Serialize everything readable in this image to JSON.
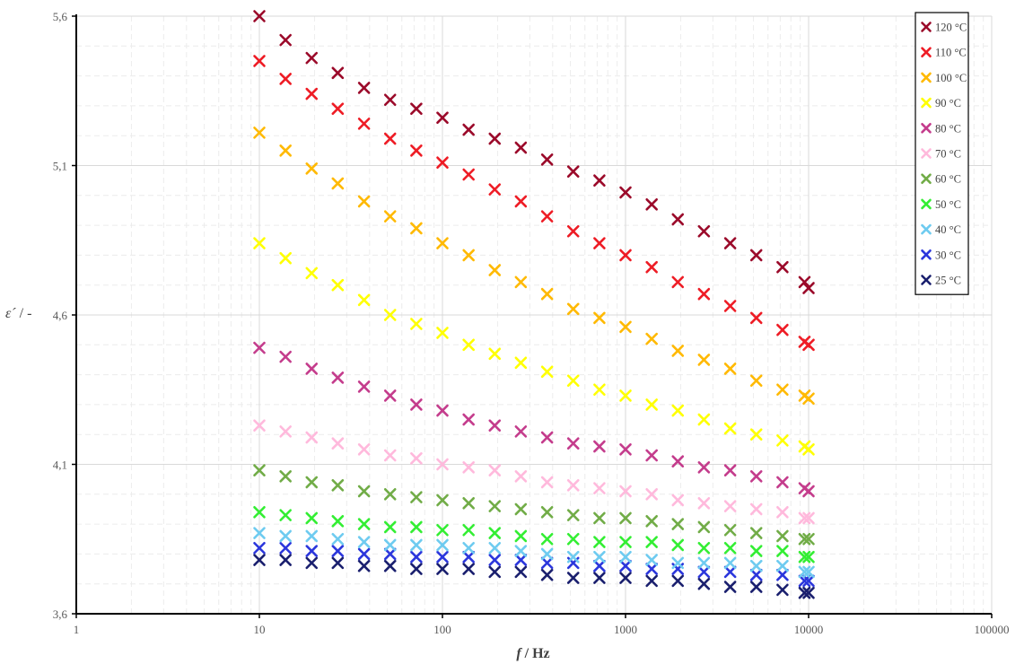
{
  "chart_data": {
    "type": "scatter",
    "xlabel": {
      "var": "f",
      "unit": "/ Hz"
    },
    "ylabel": {
      "var": "ε´",
      "unit": "/ -"
    },
    "x_scale": "log",
    "xlim": [
      1,
      100000
    ],
    "ylim": [
      3.6,
      5.6
    ],
    "grid": true,
    "legend_position": "top-right",
    "x_ticks": [
      "1",
      "10",
      "100",
      "1000",
      "10000",
      "100000"
    ],
    "y_ticks": [
      "3,6",
      "4,1",
      "4,6",
      "5,1",
      "5,6"
    ],
    "x": [
      10,
      13.9,
      19.3,
      26.8,
      37.3,
      51.8,
      72,
      100,
      139,
      193,
      268,
      373,
      518,
      720,
      1000,
      1390,
      1930,
      2680,
      3730,
      5180,
      7200,
      9500,
      10000
    ],
    "series": [
      {
        "name": "120 °C",
        "color": "#9b0a2a",
        "values": [
          5.6,
          5.52,
          5.46,
          5.41,
          5.36,
          5.32,
          5.29,
          5.26,
          5.22,
          5.19,
          5.16,
          5.12,
          5.08,
          5.05,
          5.01,
          4.97,
          4.92,
          4.88,
          4.84,
          4.8,
          4.76,
          4.71,
          4.69
        ]
      },
      {
        "name": "110 °C",
        "color": "#ee1c25",
        "values": [
          5.45,
          5.39,
          5.34,
          5.29,
          5.24,
          5.19,
          5.15,
          5.11,
          5.07,
          5.02,
          4.98,
          4.93,
          4.88,
          4.84,
          4.8,
          4.76,
          4.71,
          4.67,
          4.63,
          4.59,
          4.55,
          4.51,
          4.5
        ]
      },
      {
        "name": "100 °C",
        "color": "#ffb900",
        "values": [
          5.21,
          5.15,
          5.09,
          5.04,
          4.98,
          4.93,
          4.89,
          4.84,
          4.8,
          4.75,
          4.71,
          4.67,
          4.62,
          4.59,
          4.56,
          4.52,
          4.48,
          4.45,
          4.42,
          4.38,
          4.35,
          4.33,
          4.32
        ]
      },
      {
        "name": "90 °C",
        "color": "#ffff00",
        "values": [
          4.84,
          4.79,
          4.74,
          4.7,
          4.65,
          4.6,
          4.57,
          4.54,
          4.5,
          4.47,
          4.44,
          4.41,
          4.38,
          4.35,
          4.33,
          4.3,
          4.28,
          4.25,
          4.22,
          4.2,
          4.18,
          4.16,
          4.15
        ]
      },
      {
        "name": "80 °C",
        "color": "#c43c8c",
        "values": [
          4.49,
          4.46,
          4.42,
          4.39,
          4.36,
          4.33,
          4.3,
          4.28,
          4.25,
          4.23,
          4.21,
          4.19,
          4.17,
          4.16,
          4.15,
          4.13,
          4.11,
          4.09,
          4.08,
          4.06,
          4.04,
          4.02,
          4.01
        ]
      },
      {
        "name": "70 °C",
        "color": "#ffb9dc",
        "values": [
          4.23,
          4.21,
          4.19,
          4.17,
          4.15,
          4.13,
          4.12,
          4.1,
          4.09,
          4.08,
          4.06,
          4.04,
          4.03,
          4.02,
          4.01,
          4.0,
          3.98,
          3.97,
          3.96,
          3.95,
          3.94,
          3.92,
          3.92
        ]
      },
      {
        "name": "60 °C",
        "color": "#71ac47",
        "values": [
          4.08,
          4.06,
          4.04,
          4.03,
          4.01,
          4.0,
          3.99,
          3.98,
          3.97,
          3.96,
          3.95,
          3.94,
          3.93,
          3.92,
          3.92,
          3.91,
          3.9,
          3.89,
          3.88,
          3.87,
          3.86,
          3.85,
          3.85
        ]
      },
      {
        "name": "50 °C",
        "color": "#33ee33",
        "values": [
          3.94,
          3.93,
          3.92,
          3.91,
          3.9,
          3.89,
          3.89,
          3.88,
          3.88,
          3.87,
          3.86,
          3.85,
          3.85,
          3.84,
          3.84,
          3.84,
          3.83,
          3.82,
          3.82,
          3.81,
          3.81,
          3.79,
          3.79
        ]
      },
      {
        "name": "40 °C",
        "color": "#6ecbf0",
        "values": [
          3.87,
          3.86,
          3.86,
          3.85,
          3.84,
          3.83,
          3.83,
          3.83,
          3.82,
          3.82,
          3.81,
          3.8,
          3.79,
          3.79,
          3.79,
          3.78,
          3.77,
          3.77,
          3.77,
          3.76,
          3.76,
          3.74,
          3.74
        ]
      },
      {
        "name": "30 °C",
        "color": "#2b36dc",
        "values": [
          3.82,
          3.82,
          3.81,
          3.81,
          3.8,
          3.8,
          3.79,
          3.79,
          3.79,
          3.78,
          3.78,
          3.77,
          3.77,
          3.76,
          3.76,
          3.75,
          3.75,
          3.74,
          3.74,
          3.73,
          3.73,
          3.71,
          3.71
        ]
      },
      {
        "name": "25 °C",
        "color": "#1a1f6e",
        "values": [
          3.78,
          3.78,
          3.77,
          3.77,
          3.76,
          3.76,
          3.75,
          3.75,
          3.75,
          3.74,
          3.74,
          3.73,
          3.72,
          3.72,
          3.72,
          3.71,
          3.71,
          3.7,
          3.69,
          3.69,
          3.68,
          3.67,
          3.67
        ]
      }
    ]
  }
}
